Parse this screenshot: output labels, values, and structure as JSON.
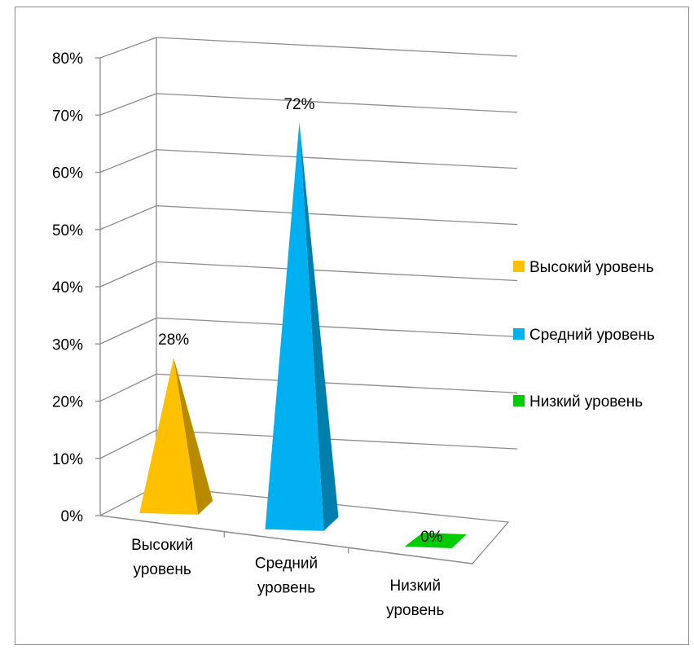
{
  "chart_data": {
    "type": "bar",
    "style": "3d-pyramid",
    "categories": [
      "Высокий уровень",
      "Средний уровень",
      "Низкий уровень"
    ],
    "values": [
      28,
      72,
      0
    ],
    "data_labels": [
      "28%",
      "72%",
      "0%"
    ],
    "colors": [
      "#FFC000",
      "#00B0F0",
      "#00CC00"
    ],
    "ylim": [
      0,
      80
    ],
    "yticks": [
      "0%",
      "10%",
      "20%",
      "30%",
      "40%",
      "50%",
      "60%",
      "70%",
      "80%"
    ],
    "grid": true,
    "legend": {
      "position": "right",
      "entries": [
        {
          "label": "Высокий уровень",
          "color": "#FFC000"
        },
        {
          "label": "Средний уровень",
          "color": "#00B0F0"
        },
        {
          "label": "Низкий уровень",
          "color": "#00CC00"
        }
      ]
    },
    "title": "",
    "xlabel": "",
    "ylabel": ""
  }
}
